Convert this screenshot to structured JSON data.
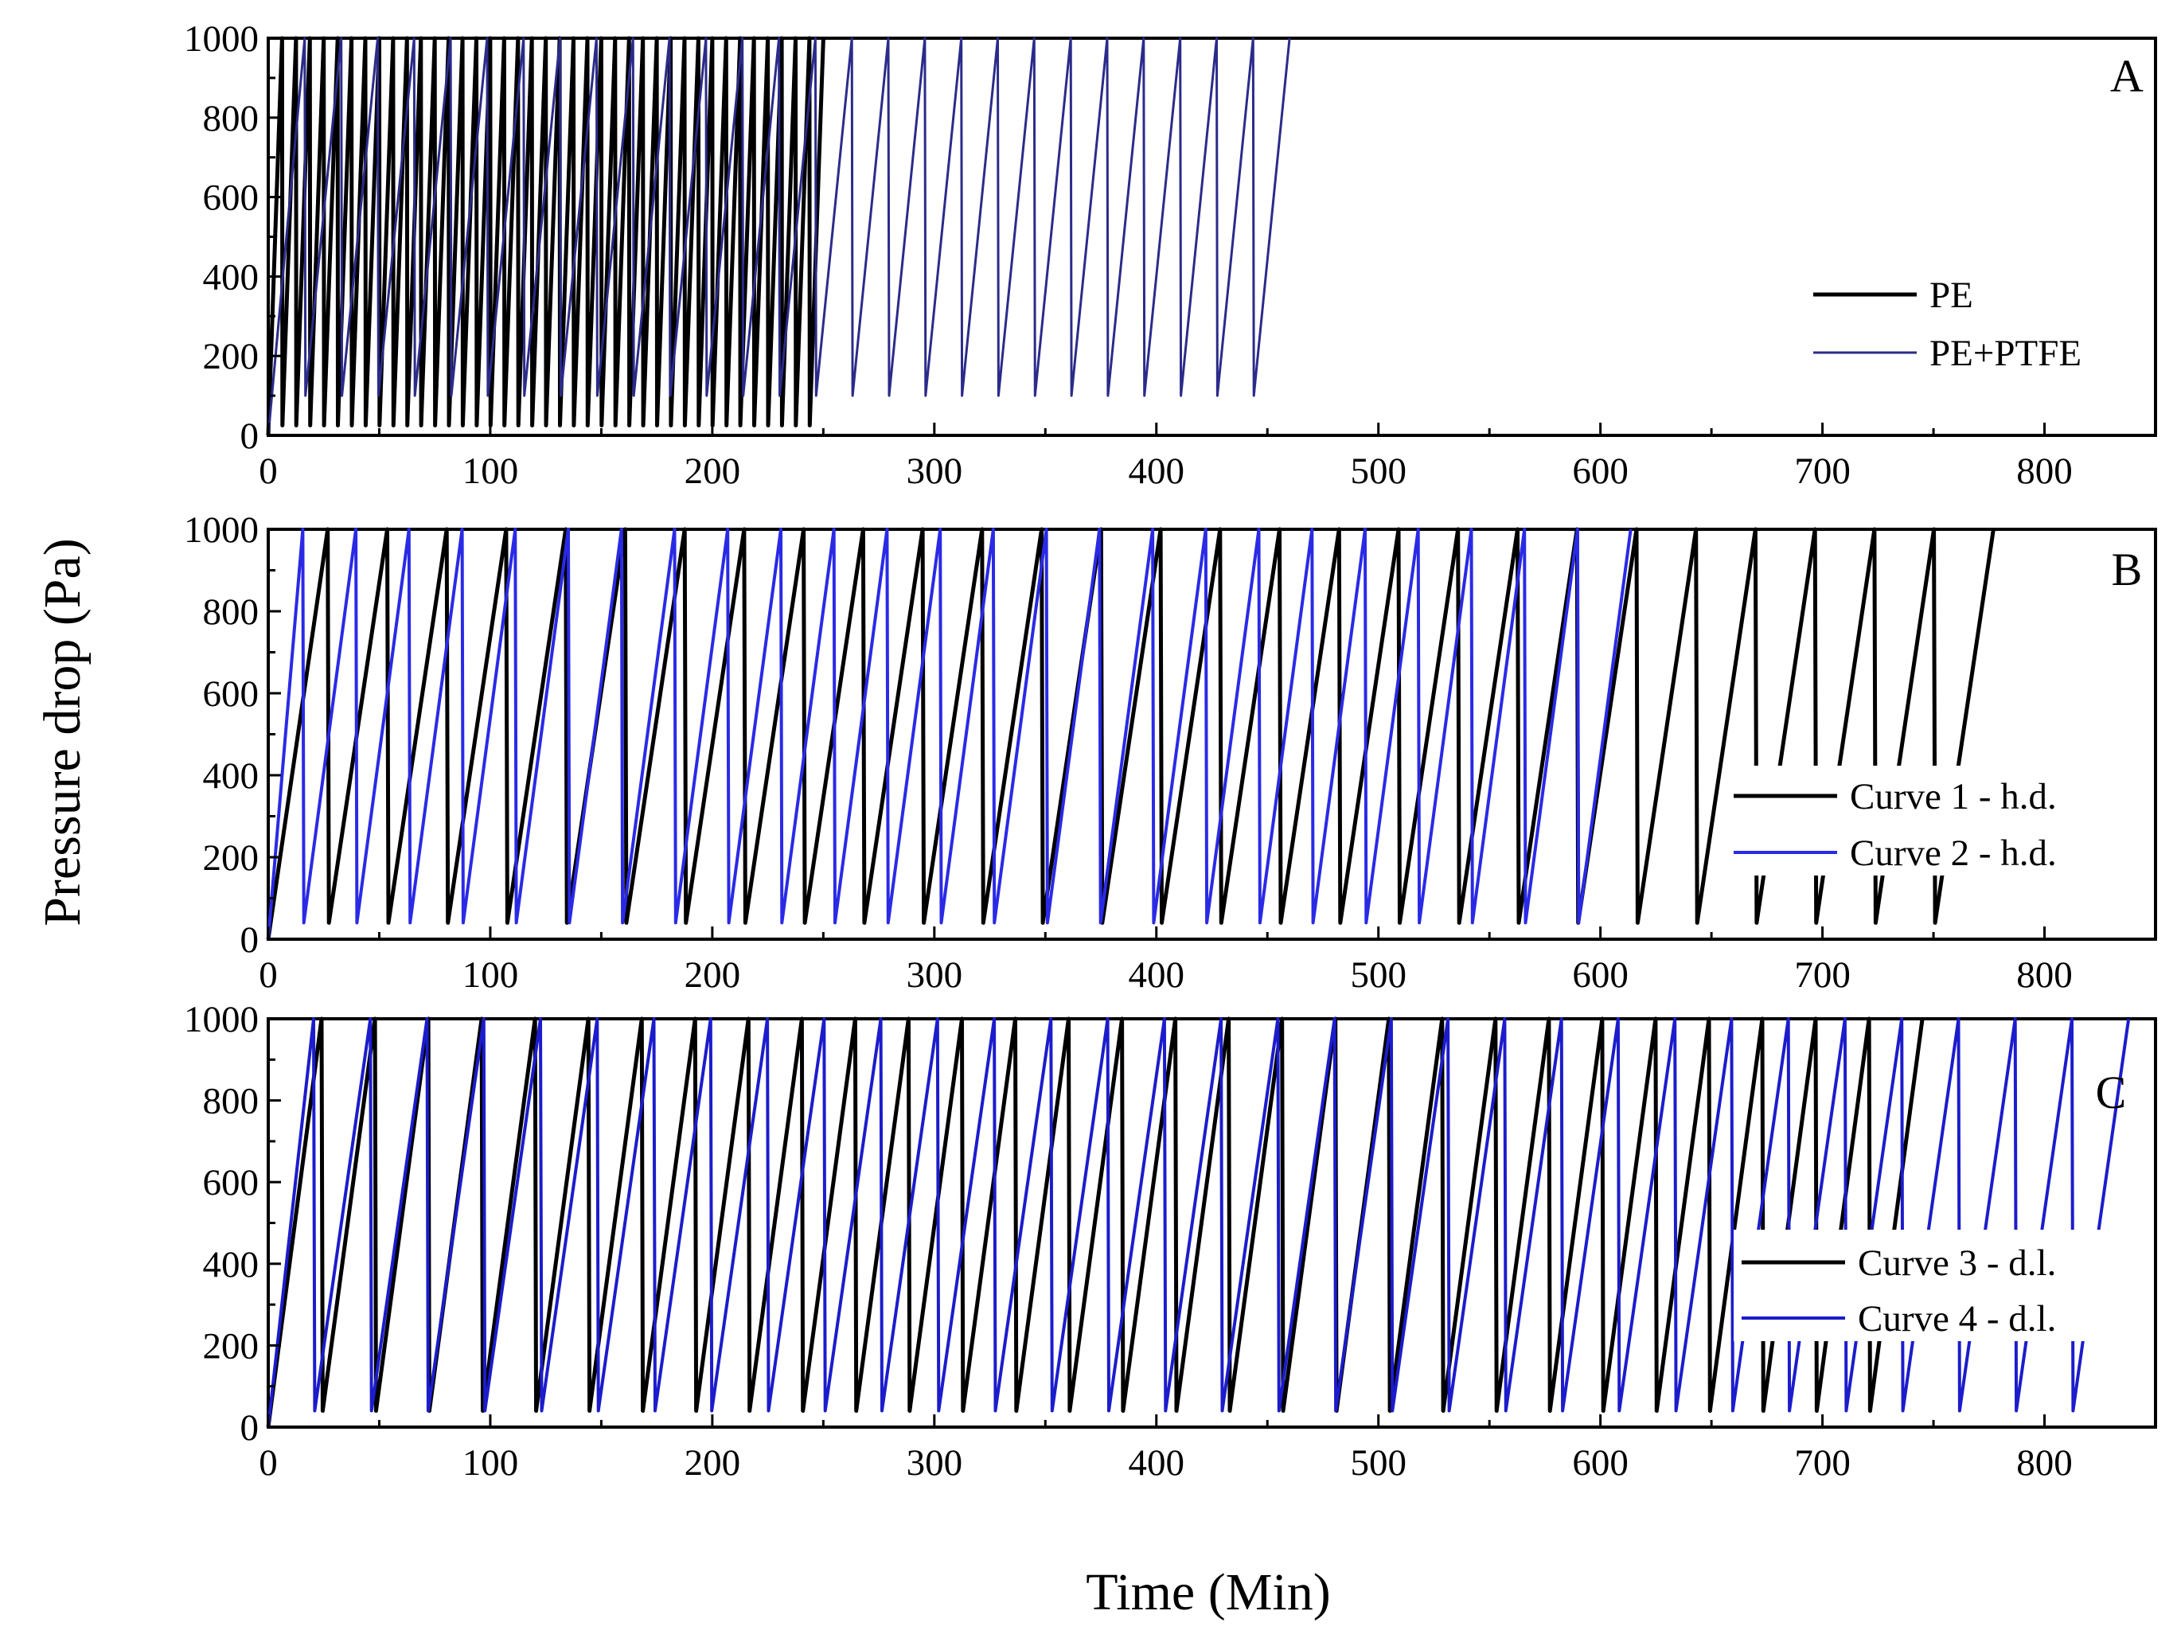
{
  "figure": {
    "xlabel": "Time (Min)",
    "ylabel": "Pressure drop (Pa)"
  },
  "chart_data": [
    {
      "panel": "A",
      "type": "line",
      "xlim": [
        0,
        850
      ],
      "ylim": [
        0,
        1000
      ],
      "xticks": [
        "0",
        "100",
        "200",
        "300",
        "400",
        "500",
        "600",
        "700",
        "800"
      ],
      "yticks": [
        "0",
        "200",
        "400",
        "600",
        "800",
        "1000"
      ],
      "legend_position": "middle-right",
      "series": [
        {
          "name": "PE",
          "color": "#000000",
          "start": 0,
          "end": 250,
          "cycles": 40,
          "low": 25
        },
        {
          "name": "PE+PTFE",
          "color": "#2b2b8a",
          "start": 0,
          "end": 460,
          "cycles": 28,
          "low": 100
        }
      ]
    },
    {
      "panel": "B",
      "type": "line",
      "xlim": [
        0,
        850
      ],
      "ylim": [
        0,
        1000
      ],
      "xticks": [
        "0",
        "100",
        "200",
        "300",
        "400",
        "500",
        "600",
        "700",
        "800"
      ],
      "yticks": [
        "0",
        "200",
        "400",
        "600",
        "800",
        "1000"
      ],
      "legend_position": "lower-right",
      "series": [
        {
          "name": "Curve 1 - h.d.",
          "color": "#000000",
          "start": 0,
          "end": 777,
          "cycles": 29,
          "low": 40
        },
        {
          "name": "Curve 2 - h.d.",
          "color": "#2a2ae6",
          "start": 0,
          "end": 622,
          "cycles": 26,
          "low": 40
        }
      ]
    },
    {
      "panel": "C",
      "type": "line",
      "xlim": [
        0,
        850
      ],
      "ylim": [
        0,
        1000
      ],
      "xticks": [
        "0",
        "100",
        "200",
        "300",
        "400",
        "500",
        "600",
        "700",
        "800"
      ],
      "yticks": [
        "0",
        "200",
        "400",
        "600",
        "800",
        "1000"
      ],
      "legend_position": "middle-right",
      "series": [
        {
          "name": "Curve 3 - d.l.",
          "color": "#000000",
          "start": 0,
          "end": 745,
          "cycles": 31,
          "low": 40
        },
        {
          "name": "Curve 4 - d.l.",
          "color": "#1c1ccc",
          "start": 0,
          "end": 843,
          "cycles": 33,
          "low": 40
        }
      ]
    }
  ]
}
